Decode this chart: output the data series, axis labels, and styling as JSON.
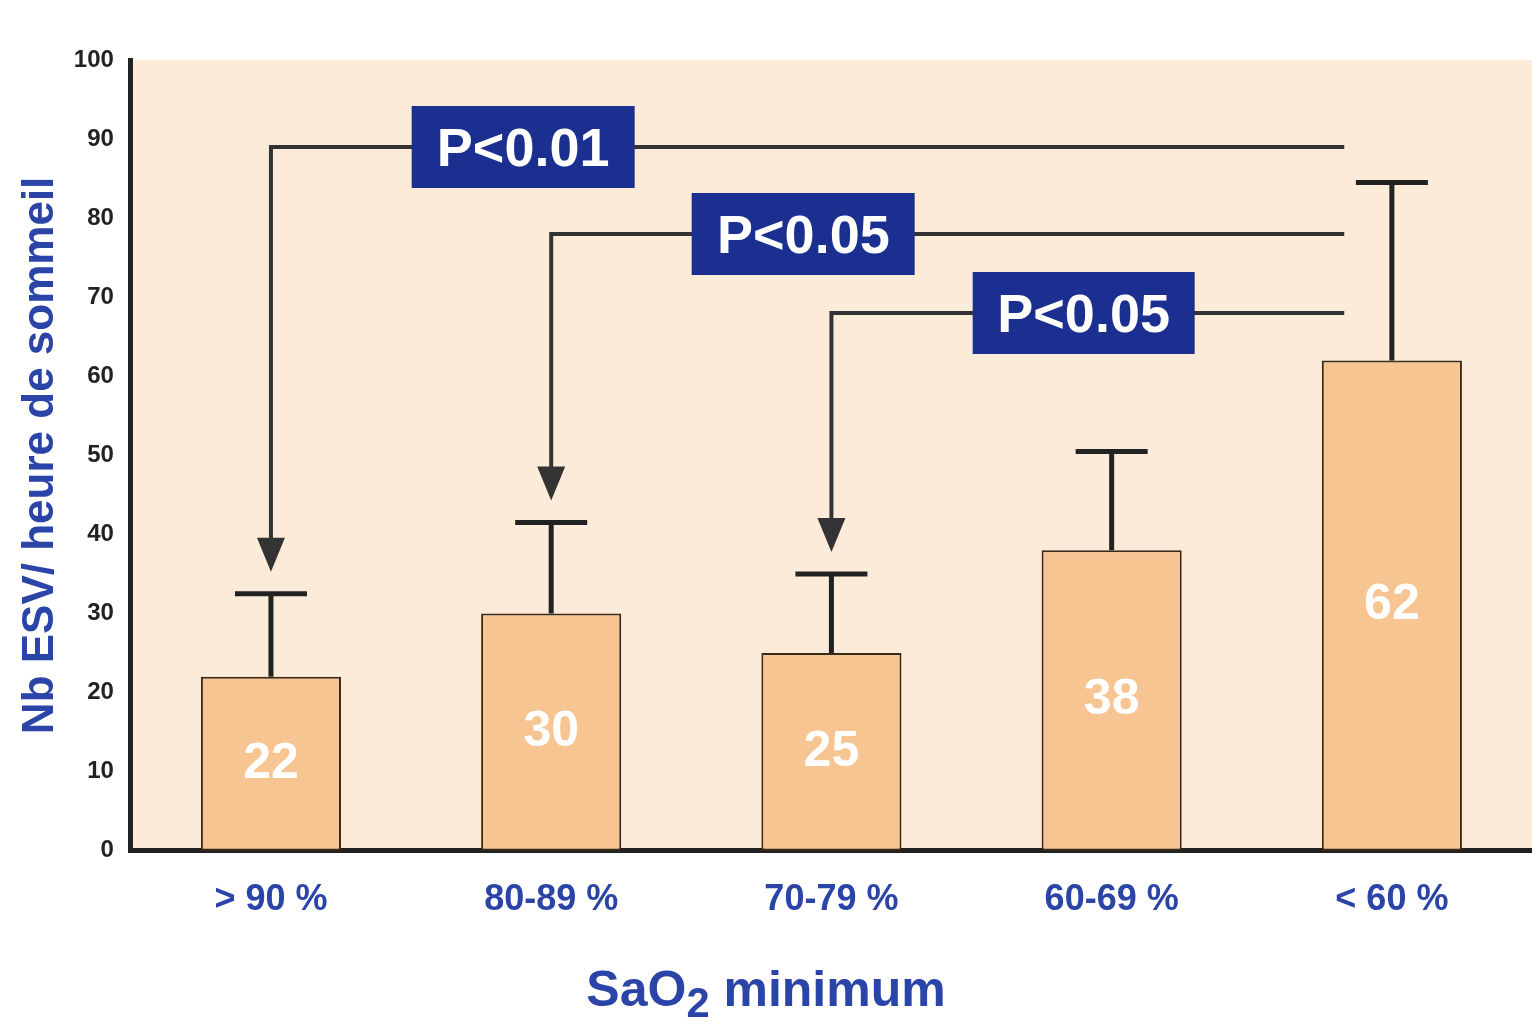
{
  "chart_data": {
    "type": "bar",
    "xlabel": "SaO$_{2}$ minimum",
    "ylabel": "Nb ESV/ heure de sommeil",
    "categories": [
      "> 90 %",
      "80-89 %",
      "70-79 %",
      "60-69 %",
      "< 60 %"
    ],
    "values": [
      22,
      30,
      25,
      38,
      62
    ],
    "color": "#f7c591",
    "errors": [
      [
        22,
        32.5
      ],
      [
        30,
        41.5
      ],
      [
        25,
        35
      ],
      [
        38,
        50.5
      ],
      [
        62,
        84.5
      ]
    ],
    "ylim": [
      0,
      100
    ],
    "yticks": [
      0,
      10,
      20,
      30,
      40,
      50,
      60,
      70,
      80,
      90,
      100
    ],
    "grid": false,
    "data_labels": true,
    "annotations": [
      "P<0.01",
      "P<0.05",
      "P<0.05"
    ]
  }
}
